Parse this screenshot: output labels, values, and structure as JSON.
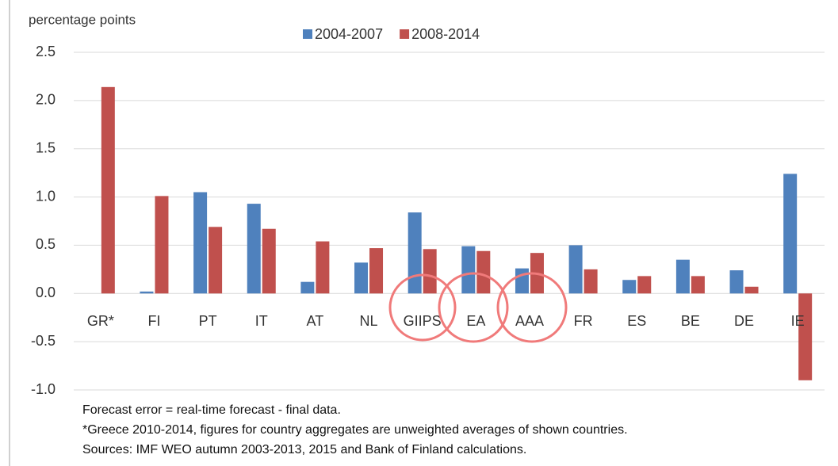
{
  "chart_data": {
    "type": "bar",
    "y_label": "percentage points",
    "categories": [
      "GR*",
      "FI",
      "PT",
      "IT",
      "AT",
      "NL",
      "GIIPS",
      "EA",
      "AAA",
      "FR",
      "ES",
      "BE",
      "DE",
      "IE"
    ],
    "series": [
      {
        "name": "2004-2007",
        "color": "#4f81bd",
        "values": [
          null,
          0.02,
          1.05,
          0.93,
          0.12,
          0.32,
          0.84,
          0.49,
          0.26,
          0.5,
          0.14,
          0.35,
          0.24,
          1.24
        ]
      },
      {
        "name": "2008-2014",
        "color": "#c0504d",
        "values": [
          2.14,
          1.01,
          0.69,
          0.67,
          0.54,
          0.47,
          0.46,
          0.44,
          0.42,
          0.25,
          0.18,
          0.18,
          0.07,
          -0.9
        ]
      }
    ],
    "ylim": [
      -1.0,
      2.5
    ],
    "yticks": [
      {
        "value": -1.0,
        "label": "-1.0"
      },
      -0.5,
      {
        "value": 0.0,
        "label": "0.0"
      },
      0.5,
      {
        "value": 1.0,
        "label": "1.0"
      },
      1.5,
      {
        "value": 2.0,
        "label": "2.0"
      },
      2.5
    ],
    "grid": true,
    "notes": [
      "Forecast error = real-time forecast - final data.",
      "*Greece 2010-2014, figures for country aggregates are unweighted averages of shown countries.",
      "Sources: IMF WEO autumn 2003-2013, 2015 and Bank of Finland calculations."
    ]
  }
}
